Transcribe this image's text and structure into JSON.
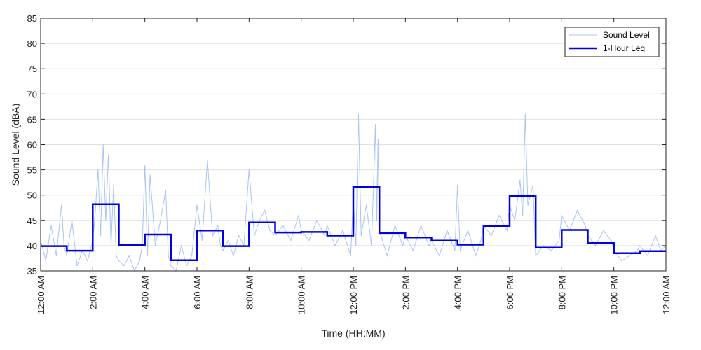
{
  "chart_data": {
    "type": "line",
    "xlabel": "Time (HH:MM)",
    "ylabel": "Sound Level (dBA)",
    "ylim": [
      35,
      85
    ],
    "xlim_hours": [
      0,
      24
    ],
    "y_ticks": [
      35,
      40,
      45,
      50,
      55,
      60,
      65,
      70,
      75,
      80,
      85
    ],
    "x_tick_hours": [
      0,
      2,
      4,
      6,
      8,
      10,
      12,
      14,
      16,
      18,
      20,
      22,
      24
    ],
    "x_tick_labels": [
      "12:00 AM",
      "2:00 AM",
      "4:00 AM",
      "6:00 AM",
      "8:00 AM",
      "10:00 AM",
      "12:00 PM",
      "2:00 PM",
      "4:00 PM",
      "6:00 PM",
      "8:00 PM",
      "10:00 PM",
      "12:00 AM"
    ],
    "grid": true,
    "legend_position": "top-right",
    "series": [
      {
        "name": "Sound Level",
        "color": "#a9c4f5",
        "points": [
          [
            0.0,
            41
          ],
          [
            0.2,
            37
          ],
          [
            0.4,
            44
          ],
          [
            0.6,
            38
          ],
          [
            0.8,
            48
          ],
          [
            0.9,
            40
          ],
          [
            1.0,
            38
          ],
          [
            1.2,
            45
          ],
          [
            1.4,
            36
          ],
          [
            1.6,
            39
          ],
          [
            1.8,
            37
          ],
          [
            2.0,
            41
          ],
          [
            2.1,
            47
          ],
          [
            2.2,
            55
          ],
          [
            2.3,
            42
          ],
          [
            2.4,
            60
          ],
          [
            2.5,
            45
          ],
          [
            2.6,
            58
          ],
          [
            2.7,
            40
          ],
          [
            2.8,
            52
          ],
          [
            2.9,
            38
          ],
          [
            3.0,
            37
          ],
          [
            3.2,
            36
          ],
          [
            3.4,
            38
          ],
          [
            3.6,
            35
          ],
          [
            3.8,
            37
          ],
          [
            3.9,
            40
          ],
          [
            4.0,
            56
          ],
          [
            4.1,
            38
          ],
          [
            4.2,
            54
          ],
          [
            4.4,
            40
          ],
          [
            4.6,
            45
          ],
          [
            4.8,
            51
          ],
          [
            4.9,
            38
          ],
          [
            5.0,
            36
          ],
          [
            5.2,
            35
          ],
          [
            5.4,
            40
          ],
          [
            5.6,
            36
          ],
          [
            5.8,
            38
          ],
          [
            6.0,
            48
          ],
          [
            6.2,
            41
          ],
          [
            6.4,
            57
          ],
          [
            6.6,
            42
          ],
          [
            6.8,
            44
          ],
          [
            6.9,
            40
          ],
          [
            7.0,
            39
          ],
          [
            7.2,
            41
          ],
          [
            7.4,
            38
          ],
          [
            7.6,
            42
          ],
          [
            7.8,
            40
          ],
          [
            8.0,
            55
          ],
          [
            8.2,
            42
          ],
          [
            8.4,
            45
          ],
          [
            8.6,
            47
          ],
          [
            8.8,
            43
          ],
          [
            9.0,
            42
          ],
          [
            9.3,
            44
          ],
          [
            9.6,
            41
          ],
          [
            9.9,
            46
          ],
          [
            10.0,
            43
          ],
          [
            10.3,
            41
          ],
          [
            10.6,
            45
          ],
          [
            10.9,
            42
          ],
          [
            11.0,
            44
          ],
          [
            11.3,
            40
          ],
          [
            11.6,
            43
          ],
          [
            11.9,
            38
          ],
          [
            12.0,
            49
          ],
          [
            12.1,
            40
          ],
          [
            12.2,
            66
          ],
          [
            12.3,
            42
          ],
          [
            12.5,
            48
          ],
          [
            12.7,
            40
          ],
          [
            12.85,
            64
          ],
          [
            12.9,
            45
          ],
          [
            12.95,
            61
          ],
          [
            13.0,
            43
          ],
          [
            13.3,
            38
          ],
          [
            13.6,
            44
          ],
          [
            13.9,
            40
          ],
          [
            14.0,
            42
          ],
          [
            14.3,
            39
          ],
          [
            14.6,
            44
          ],
          [
            14.9,
            40
          ],
          [
            15.0,
            41
          ],
          [
            15.3,
            38
          ],
          [
            15.6,
            43
          ],
          [
            15.9,
            39
          ],
          [
            16.0,
            52
          ],
          [
            16.1,
            39
          ],
          [
            16.4,
            43
          ],
          [
            16.7,
            38
          ],
          [
            16.9,
            41
          ],
          [
            17.0,
            44
          ],
          [
            17.3,
            42
          ],
          [
            17.6,
            46
          ],
          [
            17.9,
            43
          ],
          [
            18.0,
            48
          ],
          [
            18.2,
            45
          ],
          [
            18.4,
            53
          ],
          [
            18.5,
            46
          ],
          [
            18.6,
            66
          ],
          [
            18.7,
            48
          ],
          [
            18.9,
            52
          ],
          [
            19.0,
            38
          ],
          [
            19.3,
            40
          ],
          [
            19.6,
            39
          ],
          [
            19.9,
            41
          ],
          [
            20.0,
            46
          ],
          [
            20.3,
            43
          ],
          [
            20.6,
            47
          ],
          [
            20.9,
            44
          ],
          [
            21.0,
            42
          ],
          [
            21.3,
            40
          ],
          [
            21.6,
            43
          ],
          [
            21.9,
            41
          ],
          [
            22.0,
            39
          ],
          [
            22.3,
            37
          ],
          [
            22.6,
            38
          ],
          [
            22.9,
            39
          ],
          [
            23.0,
            40
          ],
          [
            23.3,
            38
          ],
          [
            23.6,
            42
          ],
          [
            23.8,
            39
          ],
          [
            24.0,
            40
          ]
        ]
      },
      {
        "name": "1-Hour Leq",
        "color": "#0000e0",
        "step_hours": [
          0,
          1,
          2,
          3,
          4,
          5,
          6,
          7,
          8,
          9,
          10,
          11,
          12,
          13,
          14,
          15,
          16,
          17,
          18,
          19,
          20,
          21,
          22,
          23
        ],
        "values": [
          39.9,
          39.0,
          48.2,
          40.1,
          42.2,
          37.1,
          43.0,
          39.9,
          44.6,
          42.6,
          42.7,
          42.0,
          51.6,
          42.5,
          41.6,
          41.0,
          40.2,
          43.9,
          49.8,
          39.6,
          43.1,
          40.5,
          38.5,
          38.9
        ]
      }
    ]
  }
}
